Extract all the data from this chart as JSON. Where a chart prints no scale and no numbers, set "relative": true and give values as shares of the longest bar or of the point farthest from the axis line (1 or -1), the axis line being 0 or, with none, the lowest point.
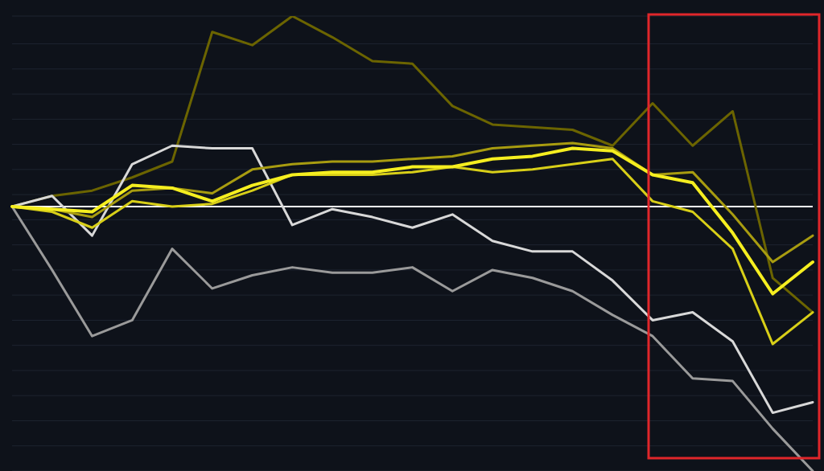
{
  "chart_data": {
    "type": "line",
    "relative": true,
    "grid": "y",
    "legend": false,
    "line_style": "solid",
    "categories": [
      null,
      null,
      null,
      null,
      null,
      null,
      null,
      null,
      null,
      null,
      null,
      null,
      null,
      null,
      null,
      null,
      null,
      null,
      null,
      null,
      null
    ],
    "series": [
      {
        "color": "#6b6400",
        "values": [
          0,
          0.04,
          0.06,
          0.11,
          0.17,
          0.66,
          0.61,
          0.72,
          0.64,
          0.55,
          0.54,
          0.38,
          0.31,
          0.3,
          0.29,
          0.23,
          0.39,
          0.23,
          0.36,
          -0.27,
          -0.4
        ]
      },
      {
        "color": "#d8d8d8",
        "values": [
          0,
          0.04,
          -0.11,
          0.16,
          0.23,
          0.22,
          0.22,
          -0.07,
          -0.01,
          -0.04,
          -0.08,
          -0.03,
          -0.13,
          -0.17,
          -0.17,
          -0.28,
          -0.43,
          -0.4,
          -0.51,
          -0.78,
          -0.74
        ]
      },
      {
        "color": "#9a9a9a",
        "values": [
          0,
          -0.24,
          -0.49,
          -0.43,
          -0.16,
          -0.31,
          -0.26,
          -0.23,
          -0.25,
          -0.25,
          -0.23,
          -0.32,
          -0.24,
          -0.27,
          -0.32,
          -0.41,
          -0.49,
          -0.65,
          -0.66,
          -0.84,
          -1
        ]
      },
      {
        "color": "#a89c10",
        "values": [
          0,
          -0.01,
          -0.04,
          0.06,
          0.07,
          0.05,
          0.14,
          0.16,
          0.17,
          0.17,
          0.18,
          0.19,
          0.22,
          0.23,
          0.24,
          0.22,
          0.12,
          0.13,
          -0.03,
          -0.21,
          -0.11
        ]
      },
      {
        "color": "#d8cf18",
        "values": [
          0,
          -0.02,
          -0.08,
          0.02,
          0,
          0.01,
          0.06,
          0.12,
          0.12,
          0.12,
          0.13,
          0.15,
          0.13,
          0.14,
          0.16,
          0.18,
          0.02,
          -0.02,
          -0.16,
          -0.52,
          -0.4
        ]
      },
      {
        "color": "#f5ee20",
        "values": [
          0,
          -0.01,
          -0.02,
          0.08,
          0.07,
          0.02,
          0.08,
          0.12,
          0.13,
          0.13,
          0.15,
          0.15,
          0.18,
          0.19,
          0.22,
          0.21,
          0.12,
          0.09,
          -0.1,
          -0.33,
          -0.21
        ]
      }
    ]
  }
}
